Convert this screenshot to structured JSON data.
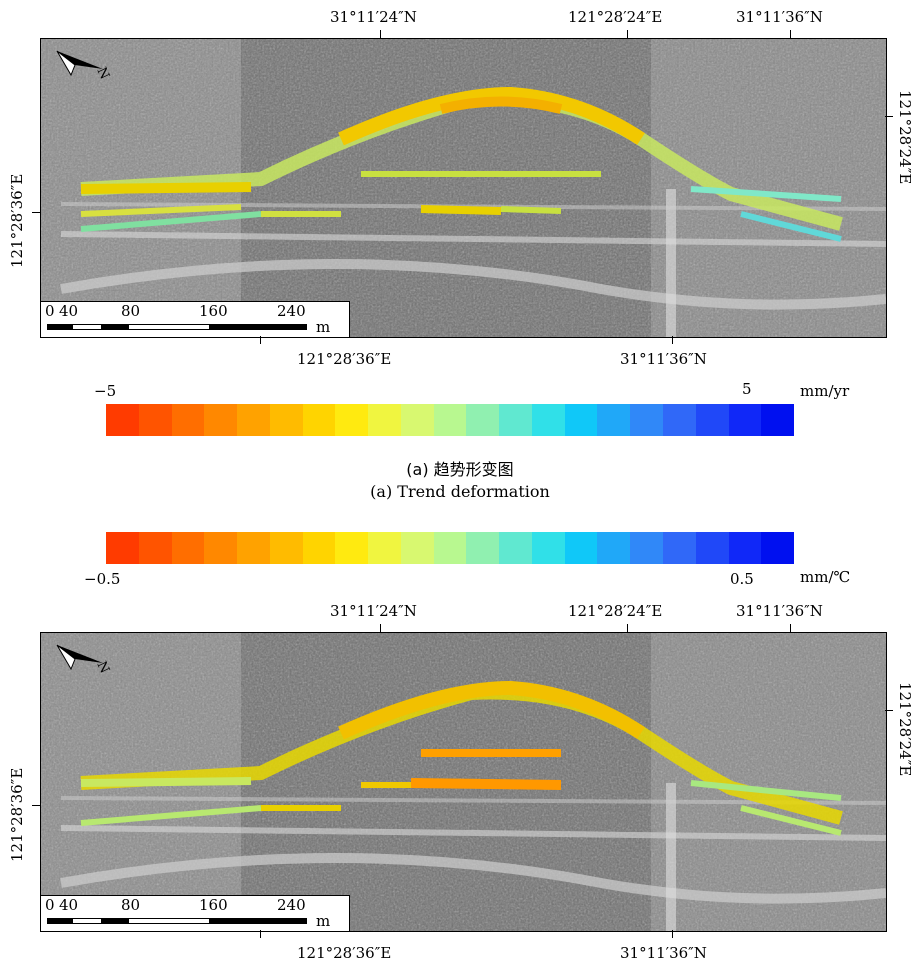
{
  "panel_a": {
    "top_labels": [
      "31°11′24″N",
      "121°28′24″E",
      "31°11′36″N"
    ],
    "bottom_labels": [
      "121°28′36″E",
      "31°11′36″N"
    ],
    "left_label": "121°28′36″E",
    "right_label": "121°28′24″E",
    "north_label": "N",
    "scale_ticks": [
      "0",
      "40",
      "80",
      "160",
      "240"
    ],
    "scale_unit": "m",
    "caption_cn": "(a) 趋势形变图",
    "caption_en": "(a) Trend deformation"
  },
  "colorbar_a": {
    "min_label": "−5",
    "max_label": "5",
    "unit": "mm/yr",
    "colors": [
      "#ff3b00",
      "#ff5400",
      "#ff6e00",
      "#ff8800",
      "#ffa200",
      "#ffbb00",
      "#ffd400",
      "#ffea10",
      "#f0f540",
      "#d8f870",
      "#b8f890",
      "#90f0b0",
      "#60e8d0",
      "#30e0e8",
      "#10c8f8",
      "#20a8f8",
      "#3088f8",
      "#3068f8",
      "#2048f8",
      "#1028f8",
      "#0010f0"
    ]
  },
  "colorbar_b": {
    "min_label": "−0.5",
    "max_label": "0.5",
    "unit": "mm/℃",
    "colors": [
      "#ff3b00",
      "#ff5400",
      "#ff6e00",
      "#ff8800",
      "#ffa200",
      "#ffbb00",
      "#ffd400",
      "#ffea10",
      "#f0f540",
      "#d8f870",
      "#b8f890",
      "#90f0b0",
      "#60e8d0",
      "#30e0e8",
      "#10c8f8",
      "#20a8f8",
      "#3088f8",
      "#3068f8",
      "#2048f8",
      "#1028f8",
      "#0010f0"
    ]
  },
  "panel_b": {
    "top_labels": [
      "31°11′24″N",
      "121°28′24″E",
      "31°11′36″N"
    ],
    "bottom_labels": [
      "121°28′36″E",
      "31°11′36″N"
    ],
    "left_label": "121°28′36″E",
    "right_label": "121°28′24″E",
    "north_label": "N",
    "scale_ticks": [
      "0",
      "40",
      "80",
      "160",
      "240"
    ],
    "scale_unit": "m"
  }
}
